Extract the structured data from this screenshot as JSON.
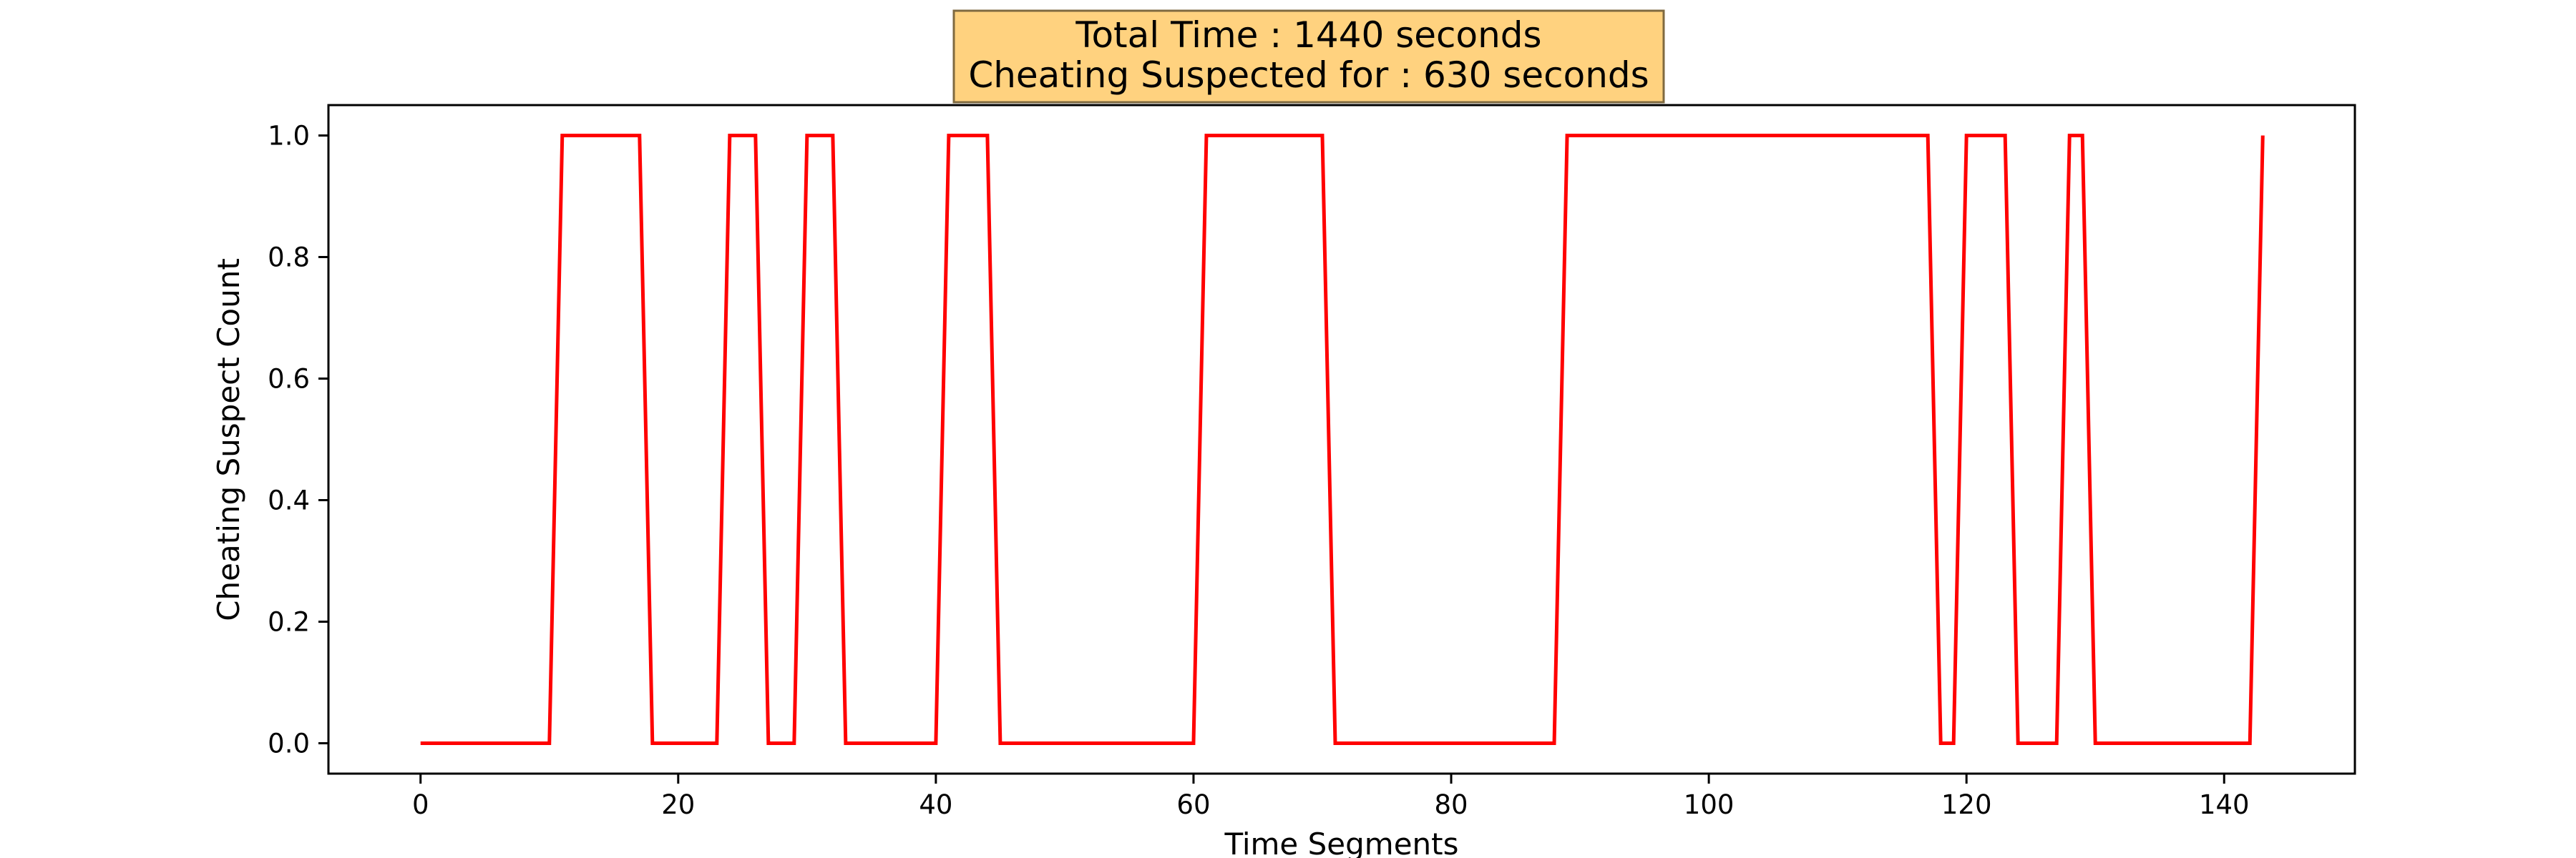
{
  "chart_data": {
    "type": "line",
    "title_lines": [
      "Total Time : 1440 seconds",
      "Cheating Suspected for : 630 seconds"
    ],
    "title_box_color": "#ffd27f",
    "xlabel": "Time Segments",
    "ylabel": "Cheating Suspect Count",
    "xlim": [
      -7.15,
      150.15
    ],
    "ylim": [
      -0.05,
      1.05
    ],
    "xticks": [
      0,
      20,
      40,
      60,
      80,
      100,
      120,
      140
    ],
    "yticks": [
      0.0,
      0.2,
      0.4,
      0.6,
      0.8,
      1.0
    ],
    "ytick_labels": [
      "0.0",
      "0.2",
      "0.4",
      "0.6",
      "0.8",
      "1.0"
    ],
    "grid": false,
    "series": [
      {
        "color": "#ff0000",
        "x": [
          0,
          1,
          2,
          3,
          4,
          5,
          6,
          7,
          8,
          9,
          10,
          11,
          12,
          13,
          14,
          15,
          16,
          17,
          18,
          19,
          20,
          21,
          22,
          23,
          24,
          25,
          26,
          27,
          28,
          29,
          30,
          31,
          32,
          33,
          34,
          35,
          36,
          37,
          38,
          39,
          40,
          41,
          42,
          43,
          44,
          45,
          46,
          47,
          48,
          49,
          50,
          51,
          52,
          53,
          54,
          55,
          56,
          57,
          58,
          59,
          60,
          61,
          62,
          63,
          64,
          65,
          66,
          67,
          68,
          69,
          70,
          71,
          72,
          73,
          74,
          75,
          76,
          77,
          78,
          79,
          80,
          81,
          82,
          83,
          84,
          85,
          86,
          87,
          88,
          89,
          90,
          91,
          92,
          93,
          94,
          95,
          96,
          97,
          98,
          99,
          100,
          101,
          102,
          103,
          104,
          105,
          106,
          107,
          108,
          109,
          110,
          111,
          112,
          113,
          114,
          115,
          116,
          117,
          118,
          119,
          120,
          121,
          122,
          123,
          124,
          125,
          126,
          127,
          128,
          129,
          130,
          131,
          132,
          133,
          134,
          135,
          136,
          137,
          138,
          139,
          140,
          141,
          142,
          143
        ],
        "y": [
          0,
          0,
          0,
          0,
          0,
          0,
          0,
          0,
          0,
          0,
          0,
          1,
          1,
          1,
          1,
          1,
          1,
          1,
          0,
          0,
          0,
          0,
          0,
          0,
          1,
          1,
          1,
          0,
          0,
          0,
          1,
          1,
          1,
          0,
          0,
          0,
          0,
          0,
          0,
          0,
          0,
          1,
          1,
          1,
          1,
          0,
          0,
          0,
          0,
          0,
          0,
          0,
          0,
          0,
          0,
          0,
          0,
          0,
          0,
          0,
          0,
          1,
          1,
          1,
          1,
          1,
          1,
          1,
          1,
          1,
          1,
          0,
          0,
          0,
          0,
          0,
          0,
          0,
          0,
          0,
          0,
          0,
          0,
          0,
          0,
          0,
          0,
          0,
          0,
          1,
          1,
          1,
          1,
          1,
          1,
          1,
          1,
          1,
          1,
          1,
          1,
          1,
          1,
          1,
          1,
          1,
          1,
          1,
          1,
          1,
          1,
          1,
          1,
          1,
          1,
          1,
          1,
          1,
          0,
          0,
          1,
          1,
          1,
          1,
          0,
          0,
          0,
          0,
          1,
          1,
          0,
          0,
          0,
          0,
          0,
          0,
          0,
          0,
          0,
          0,
          0,
          0,
          0,
          1
        ]
      }
    ]
  }
}
